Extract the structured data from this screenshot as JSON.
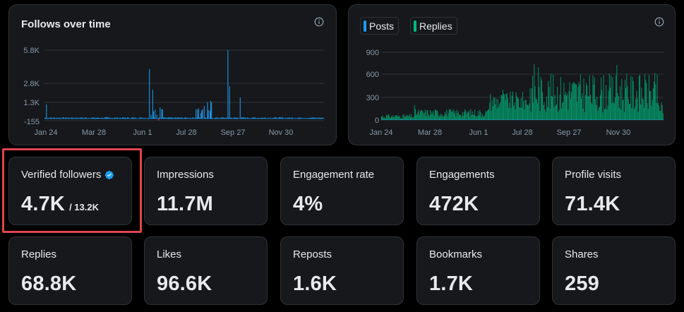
{
  "charts": {
    "follows": {
      "title": "Follows over time",
      "y_ticks": [
        "5.8K",
        "2.8K",
        "1.3K",
        "-155"
      ],
      "x_ticks": [
        "Jan 24",
        "Mar 28",
        "Jun 1",
        "Jul 28",
        "Sep 27",
        "Nov 30"
      ]
    },
    "posts_replies": {
      "legend": {
        "posts": "Posts",
        "replies": "Replies"
      },
      "y_ticks": [
        "900",
        "600",
        "300",
        "0"
      ],
      "x_ticks": [
        "Jan 24",
        "Mar 28",
        "Jun 1",
        "Jul 28",
        "Sep 27",
        "Nov 30"
      ]
    }
  },
  "chart_data": [
    {
      "type": "bar",
      "title": "Follows over time",
      "xlabel": "",
      "ylabel": "",
      "x_range": [
        "Jan 24",
        "Dec 31"
      ],
      "ylim": [
        -155,
        5800
      ],
      "series": [
        {
          "name": "Follows",
          "color": "#1d9bf0",
          "notable_values": [
            {
              "x": "Jan 26",
              "value": 800
            },
            {
              "x": "Jun 1",
              "value": 3800
            },
            {
              "x": "Jun 5",
              "value": 1900
            },
            {
              "x": "Jul 28",
              "value": 500
            },
            {
              "x": "Sep 5",
              "value": 5800
            },
            {
              "x": "Sep 7",
              "value": 2200
            },
            {
              "x": "Sep 20",
              "value": 1300
            }
          ],
          "baseline_value": 50
        }
      ]
    },
    {
      "type": "bar",
      "title": "",
      "xlabel": "",
      "ylabel": "",
      "x_range": [
        "Jan 24",
        "Dec 31"
      ],
      "ylim": [
        0,
        900
      ],
      "series": [
        {
          "name": "Posts",
          "color": "#1d9bf0",
          "typical_value": 5
        },
        {
          "name": "Replies",
          "color": "#00ba7c",
          "notable_values": [
            {
              "x": "Mar 5",
              "value": 200
            },
            {
              "x": "Jun 20",
              "value": 400
            },
            {
              "x": "Jul 28",
              "value": 740
            },
            {
              "x": "Aug 2",
              "value": 700
            },
            {
              "x": "Nov 5",
              "value": 730
            },
            {
              "x": "Dec 5",
              "value": 430
            }
          ],
          "typical_value": 350
        }
      ]
    }
  ],
  "cards": [
    {
      "label": "Verified followers",
      "value": "4.7K",
      "sub": "/ 13.2K",
      "verified": true
    },
    {
      "label": "Impressions",
      "value": "11.7M"
    },
    {
      "label": "Engagement rate",
      "value": "4%"
    },
    {
      "label": "Engagements",
      "value": "472K"
    },
    {
      "label": "Profile visits",
      "value": "71.4K"
    },
    {
      "label": "Replies",
      "value": "68.8K"
    },
    {
      "label": "Likes",
      "value": "96.6K"
    },
    {
      "label": "Reposts",
      "value": "1.6K"
    },
    {
      "label": "Bookmarks",
      "value": "1.7K"
    },
    {
      "label": "Shares",
      "value": "259"
    }
  ],
  "colors": {
    "posts": "#1d9bf0",
    "replies": "#00ba7c",
    "highlight": "#e0454f",
    "verified": "#1d9bf0"
  }
}
